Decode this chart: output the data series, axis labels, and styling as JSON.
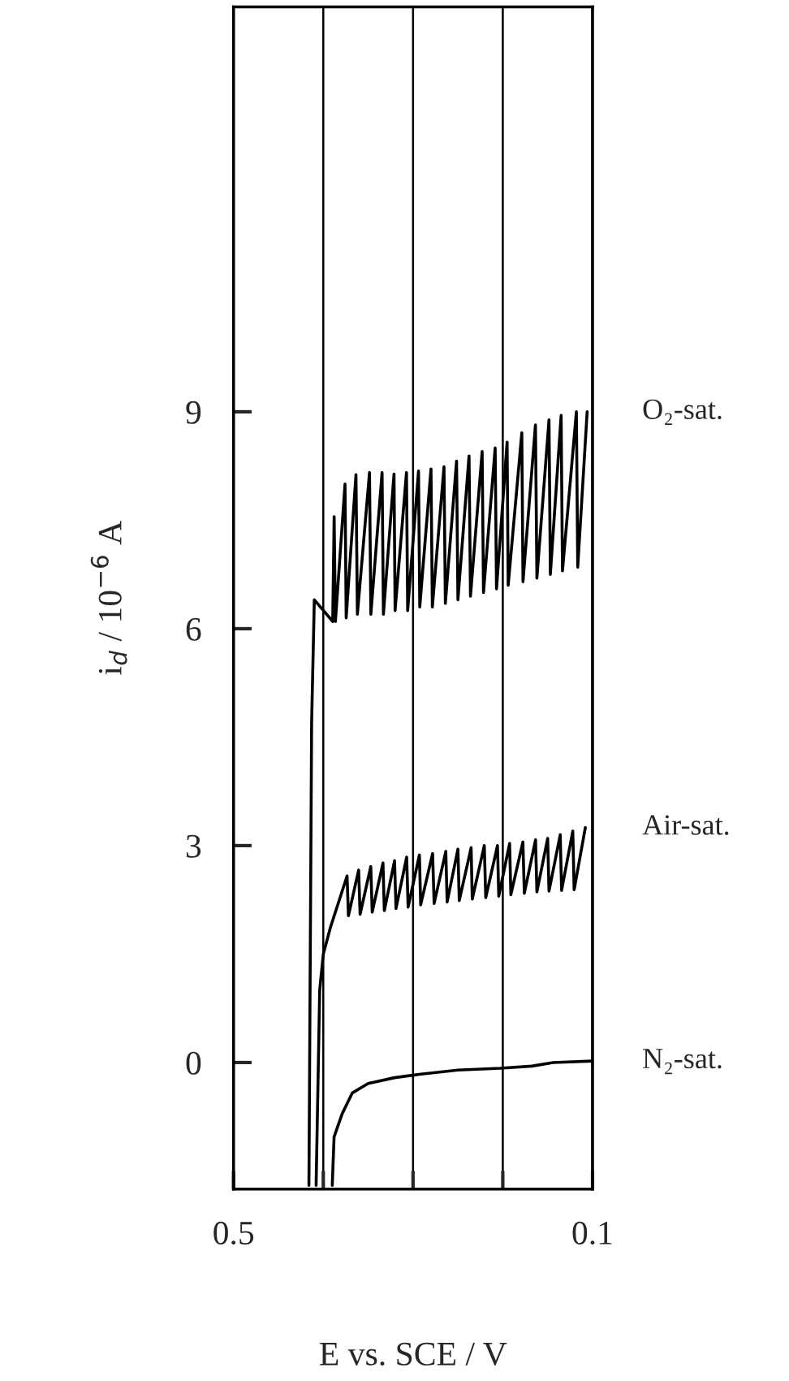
{
  "chart_data": {
    "type": "line",
    "xlabel": "E vs. SCE / V",
    "ylabel": "i$_{d}$ / 10$^{−6}$ A",
    "xlim": [
      0.5,
      0.1
    ],
    "xticks": [
      0.5,
      {
        "value": 0.4,
        "label": null
      },
      {
        "value": 0.3,
        "label": null
      },
      {
        "value": 0.2,
        "label": null
      },
      0.1
    ],
    "ylim": [
      -1.75,
      14.6
    ],
    "yticks": [
      0,
      3,
      6,
      9
    ],
    "grid": "x",
    "marker": "none",
    "line_style": "solid",
    "series": [
      {
        "name": "O₂-sat.",
        "color": "#000000",
        "x": [
          0.416,
          0.413,
          0.41,
          0.3895,
          0.3879,
          0.3865,
          0.3758,
          0.3745,
          0.3636,
          0.362,
          0.3485,
          0.347,
          0.3345,
          0.333,
          0.3212,
          0.32,
          0.3073,
          0.306,
          0.2939,
          0.2925,
          0.28,
          0.2785,
          0.2655,
          0.264,
          0.2515,
          0.25,
          0.2376,
          0.236,
          0.223,
          0.2215,
          0.2085,
          0.207,
          0.1952,
          0.194,
          0.1788,
          0.1775,
          0.1636,
          0.162,
          0.1485,
          0.147,
          0.135,
          0.1335,
          0.118,
          0.1165,
          0.106
        ],
        "values": [
          -1.7,
          4.7,
          6.4,
          6.1,
          7.55,
          6.1,
          8.0,
          6.15,
          8.13,
          6.2,
          8.16,
          6.2,
          8.16,
          6.2,
          8.14,
          6.25,
          8.16,
          6.25,
          8.18,
          6.3,
          8.21,
          6.3,
          8.24,
          6.35,
          8.32,
          6.4,
          8.39,
          6.45,
          8.45,
          6.5,
          8.5,
          6.55,
          8.58,
          6.6,
          8.71,
          6.65,
          8.82,
          6.7,
          8.89,
          6.75,
          8.95,
          6.8,
          9.0,
          6.85,
          9.0
        ]
      },
      {
        "name": "Air-sat.",
        "color": "#000000",
        "x": [
          0.408,
          0.404,
          0.4,
          0.392,
          0.3735,
          0.372,
          0.3606,
          0.359,
          0.3471,
          0.3455,
          0.3335,
          0.332,
          0.3206,
          0.319,
          0.3071,
          0.3055,
          0.2929,
          0.2915,
          0.2782,
          0.2765,
          0.2635,
          0.262,
          0.25,
          0.2485,
          0.2353,
          0.234,
          0.2206,
          0.219,
          0.2059,
          0.2045,
          0.1924,
          0.191,
          0.1776,
          0.176,
          0.1635,
          0.162,
          0.15,
          0.1485,
          0.136,
          0.1345,
          0.122,
          0.1205,
          0.108
        ],
        "values": [
          -1.7,
          1.0,
          1.5,
          1.87,
          2.58,
          2.03,
          2.66,
          2.05,
          2.71,
          2.08,
          2.76,
          2.1,
          2.79,
          2.13,
          2.84,
          2.15,
          2.87,
          2.18,
          2.89,
          2.2,
          2.92,
          2.22,
          2.95,
          2.24,
          2.97,
          2.26,
          3.0,
          2.28,
          3.0,
          2.3,
          3.03,
          2.32,
          3.05,
          2.34,
          3.08,
          2.36,
          3.1,
          2.37,
          3.15,
          2.38,
          3.2,
          2.39,
          3.25
        ]
      },
      {
        "name": "N₂-sat.",
        "color": "#000000",
        "x": [
          0.39,
          0.388,
          0.379,
          0.3676,
          0.35,
          0.3206,
          0.2912,
          0.25,
          0.2029,
          0.1676,
          0.144,
          0.1
        ],
        "values": [
          -1.7,
          -1.03,
          -0.71,
          -0.42,
          -0.29,
          -0.21,
          -0.16,
          -0.105,
          -0.08,
          -0.05,
          0.0,
          0.02
        ]
      }
    ]
  }
}
